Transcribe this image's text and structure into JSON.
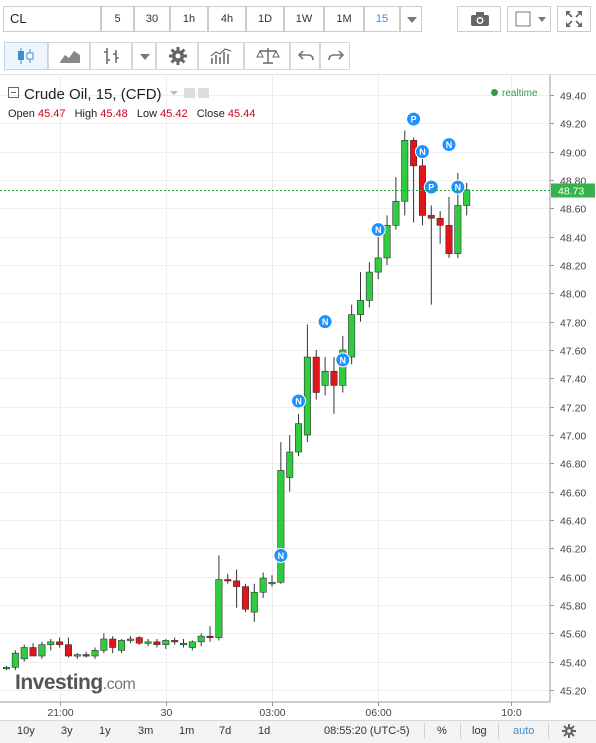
{
  "toolbar": {
    "symbol": "CL",
    "timeframes": [
      "5",
      "30",
      "1h",
      "4h",
      "1D",
      "1W",
      "1M",
      "15"
    ],
    "active_timeframe": "15"
  },
  "legend": {
    "title": "Crude Oil, 15, (CFD)",
    "open_label": "Open",
    "open": "45.47",
    "high_label": "High",
    "high": "45.48",
    "low_label": "Low",
    "low": "45.42",
    "close_label": "Close",
    "close": "45.44",
    "realtime": "realtime"
  },
  "brand": {
    "name": "Investing",
    "suffix": ".com"
  },
  "bottom": {
    "ranges": [
      "10y",
      "3y",
      "1y",
      "3m",
      "1m",
      "7d",
      "1d"
    ],
    "time": "08:55:20 (UTC-5)",
    "percent": "%",
    "log": "log",
    "auto": "auto"
  },
  "colors": {
    "up": "#2fcc40",
    "down": "#e0161b",
    "price_line": "#2aa84a",
    "accent": "#3a8fd9"
  },
  "chart_data": {
    "type": "candlestick",
    "y_ticks": [
      "49.40",
      "49.20",
      "49.00",
      "48.80",
      "48.60",
      "48.40",
      "48.20",
      "48.00",
      "47.80",
      "47.60",
      "47.40",
      "47.20",
      "47.00",
      "46.80",
      "46.60",
      "46.40",
      "46.20",
      "46.00",
      "45.80",
      "45.60",
      "45.40",
      "45.20"
    ],
    "ylim": [
      45.14,
      49.5
    ],
    "x_ticks": [
      {
        "label": "21:00",
        "index": 6
      },
      {
        "label": "30",
        "index": 18
      },
      {
        "label": "03:00",
        "index": 30
      },
      {
        "label": "06:00",
        "index": 42
      },
      {
        "label": "10:0",
        "index": 57
      }
    ],
    "last_price": "48.73",
    "candles": [
      [
        45.36,
        45.37,
        45.34,
        45.36
      ],
      [
        45.36,
        45.48,
        45.34,
        45.46
      ],
      [
        45.42,
        45.52,
        45.4,
        45.5
      ],
      [
        45.5,
        45.53,
        45.44,
        45.44
      ],
      [
        45.44,
        45.54,
        45.42,
        45.52
      ],
      [
        45.52,
        45.56,
        45.48,
        45.54
      ],
      [
        45.54,
        45.57,
        45.5,
        45.52
      ],
      [
        45.52,
        45.57,
        45.43,
        45.44
      ],
      [
        45.44,
        45.46,
        45.42,
        45.45
      ],
      [
        45.45,
        45.47,
        45.43,
        45.44
      ],
      [
        45.44,
        45.5,
        45.42,
        45.48
      ],
      [
        45.48,
        45.6,
        45.46,
        45.56
      ],
      [
        45.56,
        45.58,
        45.46,
        45.5
      ],
      [
        45.48,
        45.56,
        45.46,
        45.55
      ],
      [
        45.55,
        45.58,
        45.53,
        45.56
      ],
      [
        45.57,
        45.58,
        45.52,
        45.53
      ],
      [
        45.53,
        45.56,
        45.51,
        45.54
      ],
      [
        45.54,
        45.56,
        45.5,
        45.52
      ],
      [
        45.52,
        45.56,
        45.49,
        45.55
      ],
      [
        45.55,
        45.57,
        45.52,
        45.54
      ],
      [
        45.52,
        45.56,
        45.5,
        45.53
      ],
      [
        45.5,
        45.55,
        45.48,
        45.54
      ],
      [
        45.54,
        45.6,
        45.51,
        45.58
      ],
      [
        45.58,
        45.65,
        45.54,
        45.57
      ],
      [
        45.57,
        46.15,
        45.55,
        45.98
      ],
      [
        45.98,
        46.02,
        45.95,
        45.97
      ],
      [
        45.97,
        46.05,
        45.78,
        45.93
      ],
      [
        45.93,
        45.95,
        45.75,
        45.77
      ],
      [
        45.75,
        45.95,
        45.68,
        45.89
      ],
      [
        45.89,
        46.03,
        45.85,
        45.99
      ],
      [
        45.95,
        46.01,
        45.93,
        45.96
      ],
      [
        45.96,
        46.95,
        45.95,
        46.75
      ],
      [
        46.7,
        47.0,
        46.6,
        46.88
      ],
      [
        46.88,
        47.15,
        46.85,
        47.08
      ],
      [
        47.0,
        47.78,
        46.95,
        47.55
      ],
      [
        47.55,
        47.6,
        47.25,
        47.3
      ],
      [
        47.35,
        47.55,
        47.28,
        47.45
      ],
      [
        47.45,
        47.55,
        47.15,
        47.35
      ],
      [
        47.35,
        47.7,
        47.3,
        47.6
      ],
      [
        47.55,
        47.92,
        47.5,
        47.85
      ],
      [
        47.85,
        48.15,
        47.8,
        47.95
      ],
      [
        47.95,
        48.22,
        47.9,
        48.15
      ],
      [
        48.15,
        48.4,
        48.1,
        48.25
      ],
      [
        48.25,
        48.55,
        48.2,
        48.48
      ],
      [
        48.48,
        48.82,
        48.45,
        48.65
      ],
      [
        48.65,
        49.15,
        48.55,
        49.08
      ],
      [
        49.08,
        49.1,
        48.5,
        48.9
      ],
      [
        48.9,
        48.98,
        48.48,
        48.55
      ],
      [
        48.55,
        48.62,
        47.92,
        48.53
      ],
      [
        48.53,
        48.58,
        48.35,
        48.48
      ],
      [
        48.48,
        48.68,
        48.25,
        48.28
      ],
      [
        48.28,
        48.85,
        48.25,
        48.62
      ],
      [
        48.62,
        48.78,
        48.55,
        48.73
      ]
    ],
    "event_markers": [
      {
        "label": "N",
        "index": 31,
        "price": 46.15
      },
      {
        "label": "N",
        "index": 33,
        "price": 47.24
      },
      {
        "label": "N",
        "index": 36,
        "price": 47.8
      },
      {
        "label": "N",
        "index": 38,
        "price": 47.53
      },
      {
        "label": "N",
        "index": 42,
        "price": 48.45
      },
      {
        "label": "P",
        "index": 46,
        "price": 49.23
      },
      {
        "label": "N",
        "index": 47,
        "price": 49.0
      },
      {
        "label": "P",
        "index": 48,
        "price": 48.75
      },
      {
        "label": "N",
        "index": 50,
        "price": 49.05
      },
      {
        "label": "N",
        "index": 51,
        "price": 48.75
      }
    ]
  }
}
